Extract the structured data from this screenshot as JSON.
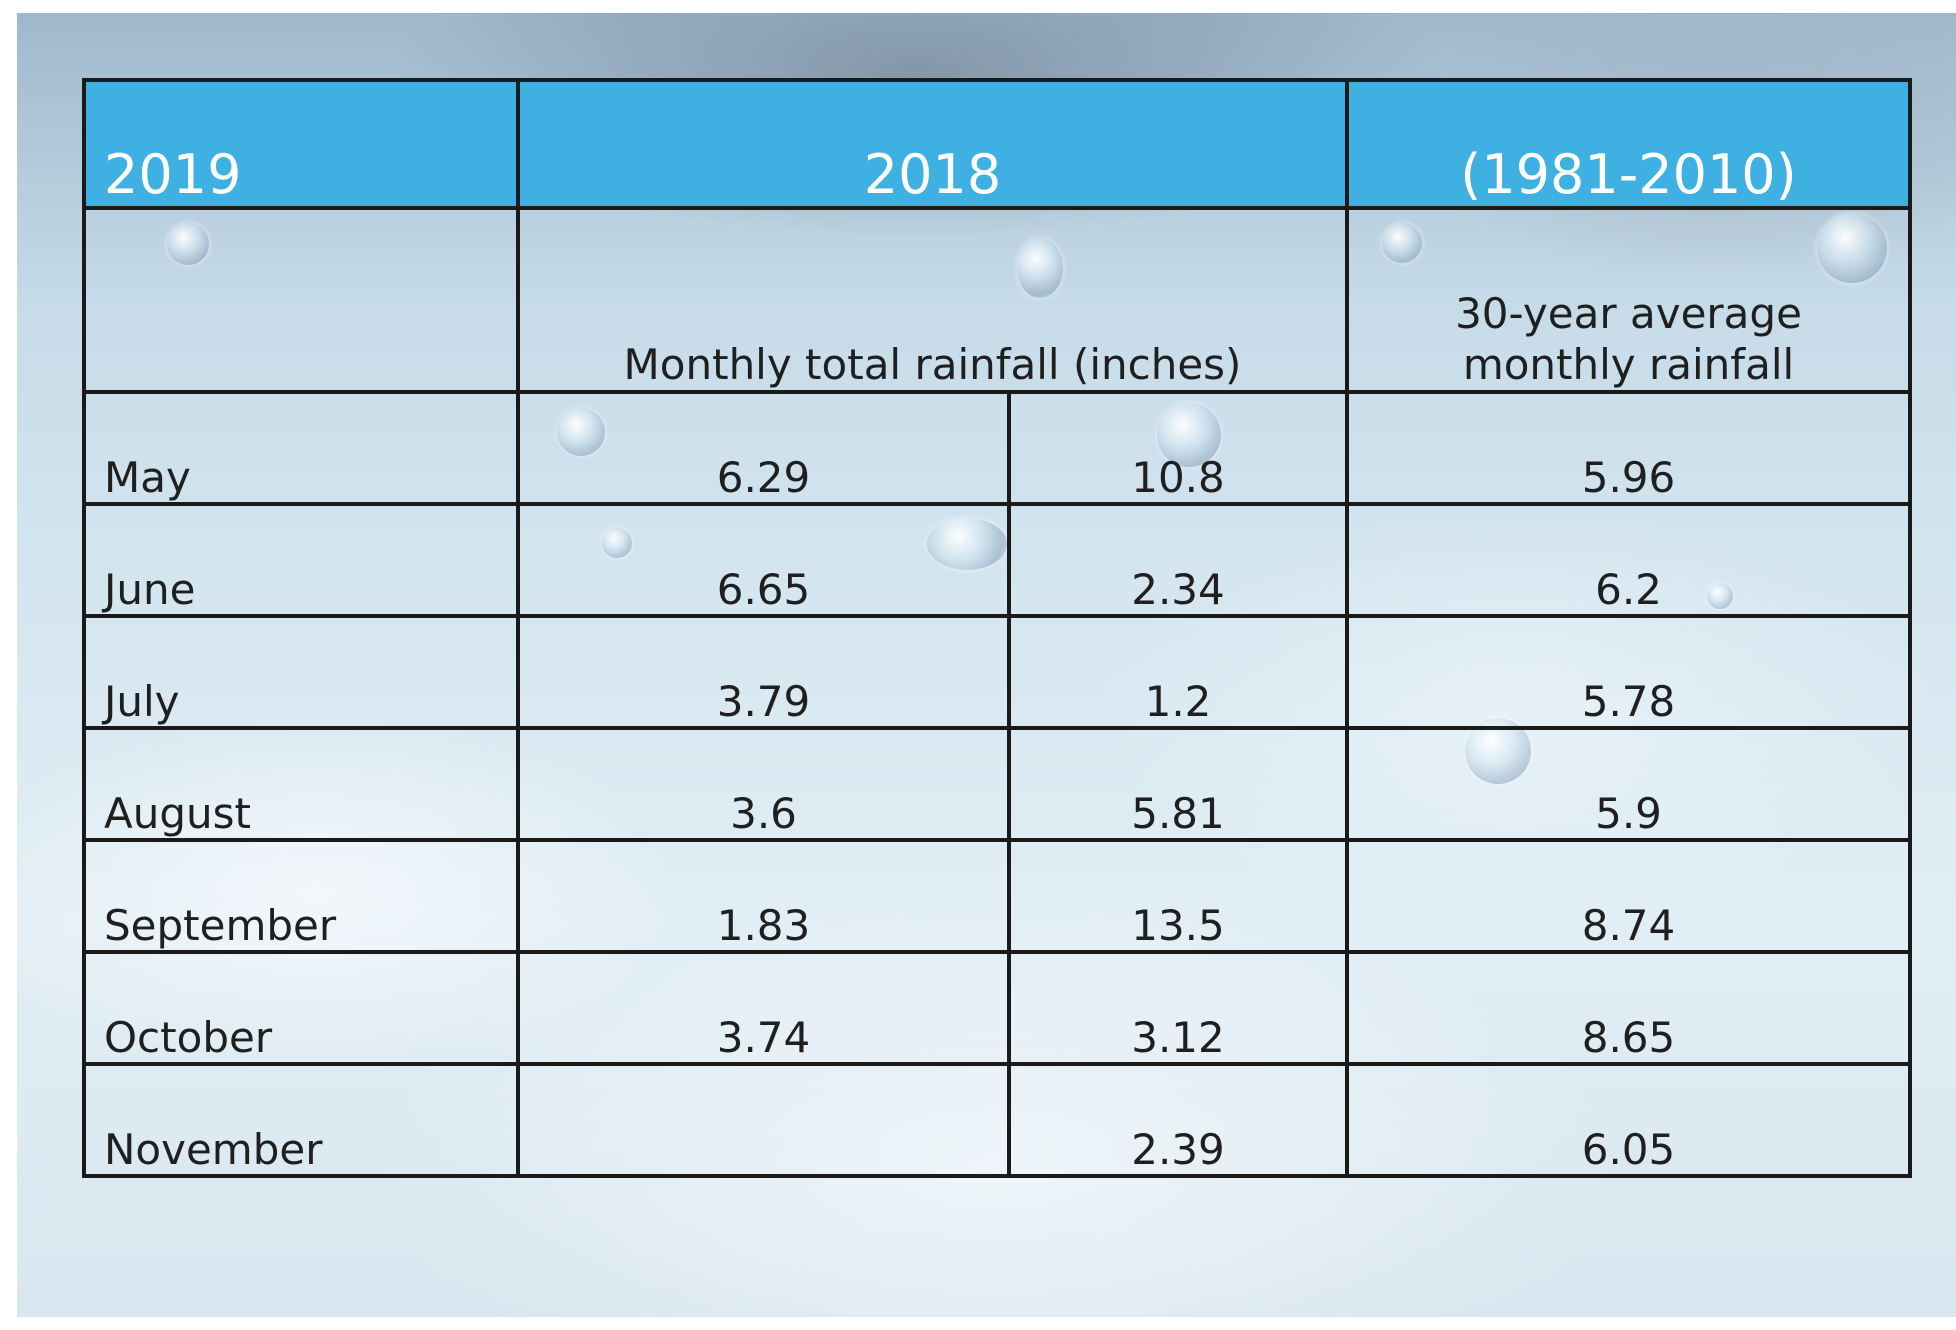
{
  "chart_data": {
    "type": "table",
    "header": {
      "col1": "2019",
      "col2": "2018",
      "col3": "(1981-2010)"
    },
    "subheader": {
      "col1": "",
      "col2": "Monthly total rainfall (inches)",
      "col3_line1": "30-year average",
      "col3_line2": "monthly rainfall"
    },
    "rows": [
      {
        "month": "May",
        "y2019": "6.29",
        "y2018": "10.8",
        "avg": "5.96"
      },
      {
        "month": "June",
        "y2019": "6.65",
        "y2018": "2.34",
        "avg": "6.2"
      },
      {
        "month": "July",
        "y2019": "3.79",
        "y2018": "1.2",
        "avg": "5.78"
      },
      {
        "month": "August",
        "y2019": "3.6",
        "y2018": "5.81",
        "avg": "5.9"
      },
      {
        "month": "September",
        "y2019": "1.83",
        "y2018": "13.5",
        "avg": "8.74"
      },
      {
        "month": "October",
        "y2019": "3.74",
        "y2018": "3.12",
        "avg": "8.65"
      },
      {
        "month": "November",
        "y2019": "",
        "y2018": "2.39",
        "avg": "6.05"
      }
    ]
  },
  "colors": {
    "header_bg": "#3fb0e2",
    "header_text": "#ffffff",
    "border": "#1a1a1a",
    "background_photo": "water-droplets"
  }
}
